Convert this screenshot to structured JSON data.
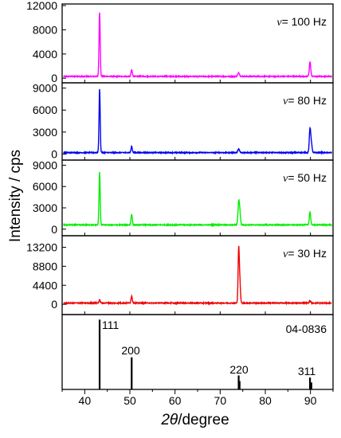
{
  "chart_data": {
    "type": "line",
    "xlabel_symbol": "2θ",
    "xlabel_unit": "/degree",
    "ylabel": "Intensity / cps",
    "xlim": [
      35,
      95
    ],
    "x_ticks": [
      "40",
      "50",
      "60",
      "70",
      "80",
      "90"
    ],
    "panels": [
      {
        "label_symbol": "ν",
        "label_value": "= 100 Hz",
        "color": "#ff00ff",
        "ylim": [
          -500,
          12000
        ],
        "y_ticks": [
          0,
          4000,
          8000,
          12000
        ],
        "y_tick_labels": [
          "0",
          "4000",
          "8000",
          "12000"
        ],
        "baseline": 300,
        "peaks": [
          {
            "x": 43.3,
            "y": 10600,
            "w": 0.18
          },
          {
            "x": 50.4,
            "y": 1100,
            "w": 0.2
          },
          {
            "x": 74.1,
            "y": 600,
            "w": 0.25
          },
          {
            "x": 89.9,
            "y": 2400,
            "w": 0.22
          }
        ]
      },
      {
        "label_symbol": "ν",
        "label_value": "= 80 Hz",
        "color": "#0000ee",
        "ylim": [
          -600,
          9500
        ],
        "y_ticks": [
          0,
          3000,
          6000,
          9000
        ],
        "y_tick_labels": [
          "0",
          "3000",
          "6000",
          "9000"
        ],
        "baseline": 200,
        "peaks": [
          {
            "x": 43.3,
            "y": 8700,
            "w": 0.18
          },
          {
            "x": 50.4,
            "y": 800,
            "w": 0.2
          },
          {
            "x": 74.1,
            "y": 500,
            "w": 0.25
          },
          {
            "x": 89.9,
            "y": 3200,
            "w": 0.22
          },
          {
            "x": 90.2,
            "y": 1200,
            "w": 0.22
          }
        ]
      },
      {
        "label_symbol": "ν",
        "label_value": "= 50 Hz",
        "color": "#00ee00",
        "ylim": [
          -700,
          9500
        ],
        "y_ticks": [
          0,
          3000,
          6000,
          9000
        ],
        "y_tick_labels": [
          "0",
          "3000",
          "6000",
          "9000"
        ],
        "baseline": 600,
        "peaks": [
          {
            "x": 43.3,
            "y": 7400,
            "w": 0.18
          },
          {
            "x": 50.4,
            "y": 1500,
            "w": 0.2
          },
          {
            "x": 74.1,
            "y": 3000,
            "w": 0.22
          },
          {
            "x": 74.35,
            "y": 1600,
            "w": 0.22
          },
          {
            "x": 89.9,
            "y": 1800,
            "w": 0.22
          }
        ]
      },
      {
        "label_symbol": "ν",
        "label_value": "= 30 Hz",
        "color": "#ee0000",
        "ylim": [
          -2000,
          15500
        ],
        "y_ticks": [
          0,
          4400,
          8800,
          13200
        ],
        "y_tick_labels": [
          "0",
          "4400",
          "8800",
          "13200"
        ],
        "baseline": 300,
        "peaks": [
          {
            "x": 43.3,
            "y": 700,
            "w": 0.2
          },
          {
            "x": 50.4,
            "y": 1600,
            "w": 0.2
          },
          {
            "x": 74.1,
            "y": 12200,
            "w": 0.18
          },
          {
            "x": 74.35,
            "y": 5000,
            "w": 0.2
          },
          {
            "x": 89.9,
            "y": 500,
            "w": 0.22
          }
        ]
      }
    ],
    "reference": {
      "label": "04-0836",
      "ylim": [
        0,
        105
      ],
      "lines": [
        {
          "x": 43.3,
          "y": 100,
          "label": "111"
        },
        {
          "x": 50.4,
          "y": 46,
          "label": "200"
        },
        {
          "x": 74.1,
          "y": 20,
          "label": "220"
        },
        {
          "x": 74.3,
          "y": 12,
          "label": ""
        },
        {
          "x": 89.9,
          "y": 17,
          "label": "311"
        },
        {
          "x": 90.2,
          "y": 10,
          "label": ""
        }
      ]
    }
  }
}
